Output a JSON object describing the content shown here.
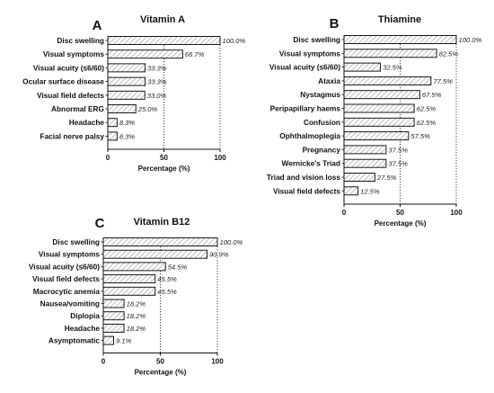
{
  "chart_data": [
    {
      "type": "bar",
      "orientation": "horizontal",
      "panel": "A",
      "title": "Vitamin A",
      "xlabel": "Percentage (%)",
      "xlim": [
        0,
        100
      ],
      "xticks": [
        "0",
        "50",
        "100"
      ],
      "categories": [
        "Disc swelling",
        "Visual symptoms",
        "Visual acuity (≤6/60)",
        "Ocular surface disease",
        "Visual field defects",
        "Abnormal ERG",
        "Headache",
        "Facial nerve palsy"
      ],
      "values": [
        100.0,
        66.7,
        33.3,
        33.3,
        33.0,
        25.0,
        8.3,
        8.3
      ],
      "value_labels": [
        "100.0%",
        "66.7%",
        "33.3%",
        "33.3%",
        "33.0%",
        "25.0%",
        "8.3%",
        "8.3%"
      ],
      "reference_line": 50,
      "bar_fill": "hatched",
      "color": "#000000"
    },
    {
      "type": "bar",
      "orientation": "horizontal",
      "panel": "B",
      "title": "Thiamine",
      "xlabel": "Percentage (%)",
      "xlim": [
        0,
        100
      ],
      "xticks": [
        "0",
        "50",
        "100"
      ],
      "categories": [
        "Disc swelling",
        "Visual symptoms",
        "Visual acuity (≤6/60)",
        "Ataxia",
        "Nystagmus",
        "Peripapillary haems",
        "Confusion",
        "Ophthalmoplegia",
        "Pregnancy",
        "Wernicke's Triad",
        "Triad and vision loss",
        "Visual field defects"
      ],
      "values": [
        100.0,
        82.5,
        32.5,
        77.5,
        67.5,
        62.5,
        62.5,
        57.5,
        37.5,
        37.5,
        27.5,
        12.5
      ],
      "value_labels": [
        "100.0%",
        "82.5%",
        "32.5%",
        "77.5%",
        "67.5%",
        "62.5%",
        "62.5%",
        "57.5%",
        "37.5%",
        "37.5%",
        "27.5%",
        "12.5%"
      ],
      "reference_line": 50,
      "bar_fill": "hatched",
      "color": "#000000"
    },
    {
      "type": "bar",
      "orientation": "horizontal",
      "panel": "C",
      "title": "Vitamin B12",
      "xlabel": "Percentage (%)",
      "xlim": [
        0,
        100
      ],
      "xticks": [
        "0",
        "50",
        "100"
      ],
      "categories": [
        "Disc swelling",
        "Visual symptoms",
        "Visual acuity (≤6/60)",
        "Visual field defects",
        "Macrocytic anemia",
        "Nausea/vomiting",
        "Diplopia",
        "Headache",
        "Asymptomatic"
      ],
      "values": [
        100.0,
        90.9,
        54.5,
        45.5,
        45.5,
        18.2,
        18.2,
        18.2,
        9.1
      ],
      "value_labels": [
        "100.0%",
        "90.9%",
        "54.5%",
        "45.5%",
        "45.5%",
        "18.2%",
        "18.2%",
        "18.2%",
        "9.1%"
      ],
      "reference_line": 50,
      "bar_fill": "hatched",
      "color": "#000000"
    }
  ]
}
